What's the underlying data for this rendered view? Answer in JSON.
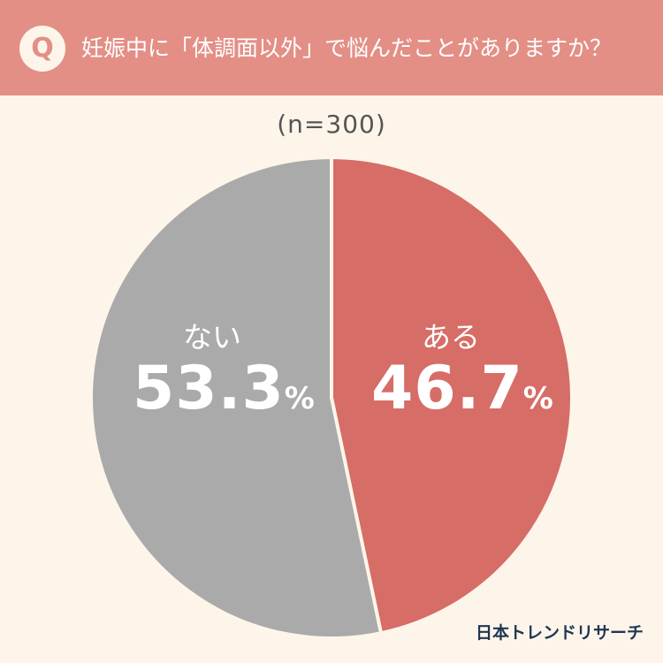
{
  "header": {
    "badge": "Q",
    "question": "妊娠中に「体調面以外」で悩んだことがありますか？",
    "background_color": "#e38f86"
  },
  "chart_data": {
    "type": "pie",
    "title": "",
    "sample_note": "(n=300)",
    "categories": [
      "ある",
      "ない"
    ],
    "values": [
      46.7,
      53.3
    ],
    "unit": "%",
    "value_labels": [
      "46.7",
      "53.3"
    ],
    "colors": [
      "#d66d66",
      "#aaaaaa"
    ],
    "start_angle_deg": 0,
    "direction": "clockwise",
    "legend": "none",
    "grid": false
  },
  "brand": "日本トレンドリサーチ"
}
